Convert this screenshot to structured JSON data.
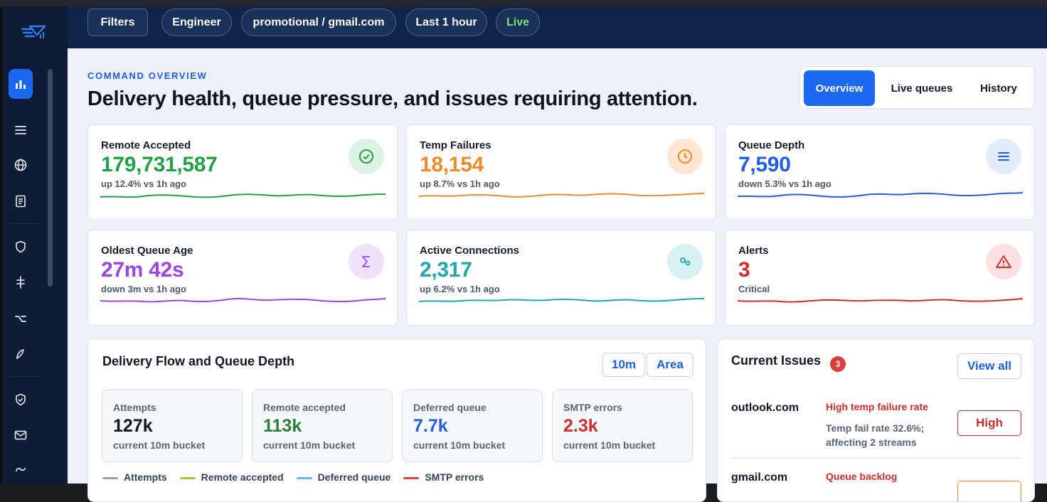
{
  "filters": {
    "filters_label": "Filters",
    "role": "Engineer",
    "stream": "promotional / gmail.com",
    "range": "Last 1 hour",
    "live": "Live"
  },
  "page": {
    "eyebrow": "COMMAND OVERVIEW",
    "headline": "Delivery health, queue pressure, and issues requiring attention."
  },
  "tabs": [
    {
      "label": "Overview",
      "active": true
    },
    {
      "label": "Live queues",
      "active": false
    },
    {
      "label": "History",
      "active": false
    }
  ],
  "kpis": [
    {
      "label": "Remote Accepted",
      "value": "179,731,587",
      "sub": "up 12.4% vs 1h ago",
      "color": "#23a047",
      "icon": "check-circle-icon"
    },
    {
      "label": "Temp Failures",
      "value": "18,154",
      "sub": "up 8.7% vs 1h ago",
      "color": "#f08a28",
      "icon": "clock-icon"
    },
    {
      "label": "Queue Depth",
      "value": "7,590",
      "sub": "down 5.3% vs 1h ago",
      "color": "#1f5ee6",
      "icon": "list-icon"
    },
    {
      "label": "Oldest Queue Age",
      "value": "27m 42s",
      "sub": "down 3m vs 1h ago",
      "color": "#9b45e4",
      "icon": "sigma-icon"
    },
    {
      "label": "Active Connections",
      "value": "2,317",
      "sub": "up 6.2% vs 1h ago",
      "color": "#1fa8a8",
      "icon": "link-icon"
    },
    {
      "label": "Alerts",
      "value": "3",
      "sub": "Critical",
      "color": "#d42b2b",
      "icon": "warning-icon"
    }
  ],
  "flow": {
    "title": "Delivery Flow and Queue Depth",
    "btn_interval": "10m",
    "btn_mode": "Area",
    "stats": [
      {
        "label": "Attempts",
        "value": "127k",
        "sub": "current 10m bucket",
        "color": "#0f1727"
      },
      {
        "label": "Remote accepted",
        "value": "113k",
        "sub": "current 10m bucket",
        "color": "#2a7d3a"
      },
      {
        "label": "Deferred queue",
        "value": "7.7k",
        "sub": "current 10m bucket",
        "color": "#1f5ee6"
      },
      {
        "label": "SMTP errors",
        "value": "2.3k",
        "sub": "current 10m bucket",
        "color": "#d42b2b"
      }
    ],
    "legend": [
      {
        "label": "Attempts",
        "color": "#9aa1ab"
      },
      {
        "label": "Remote accepted",
        "color": "#9ccc3c"
      },
      {
        "label": "Deferred queue",
        "color": "#6ab4e8"
      },
      {
        "label": "SMTP errors",
        "color": "#e0443e"
      }
    ]
  },
  "issues": {
    "title": "Current Issues",
    "count": "3",
    "view_all": "View all",
    "items": [
      {
        "domain": "outlook.com",
        "title": "High temp failure rate",
        "desc": "Temp fail rate 32.6%; affecting 2 streams",
        "severity": "High",
        "title_color": "#d42b2b"
      },
      {
        "domain": "gmail.com",
        "title": "Queue backlog",
        "desc": "",
        "severity": "",
        "title_color": "#d42b2b"
      }
    ]
  }
}
